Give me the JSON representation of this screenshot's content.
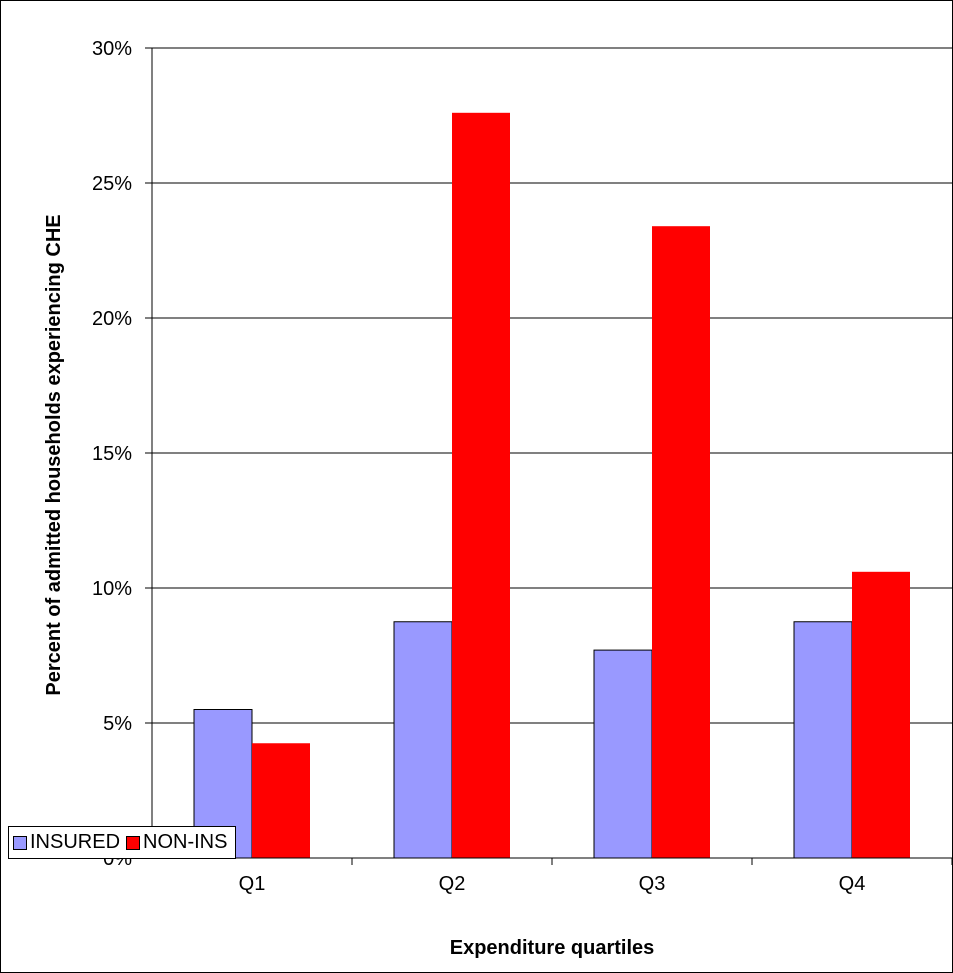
{
  "chart_data": {
    "type": "bar",
    "categories": [
      "Q1",
      "Q2",
      "Q3",
      "Q4"
    ],
    "series": [
      {
        "name": "INSURED",
        "color": "#9999ff",
        "values": [
          5.5,
          8.75,
          7.7,
          8.75
        ]
      },
      {
        "name": "NON-INS",
        "color": "#ff0000",
        "values": [
          4.25,
          27.6,
          23.4,
          10.6
        ]
      }
    ],
    "title": "",
    "xlabel": "Expenditure quartiles",
    "ylabel": "Percent of admitted households experiencing CHE",
    "ylim": [
      0,
      30
    ],
    "yticks": [
      0,
      5,
      10,
      15,
      20,
      25,
      30
    ],
    "ytick_labels": [
      "0%",
      "5%",
      "10%",
      "15%",
      "20%",
      "25%",
      "30%"
    ],
    "grid": true,
    "legend_position": "bottom-left"
  }
}
